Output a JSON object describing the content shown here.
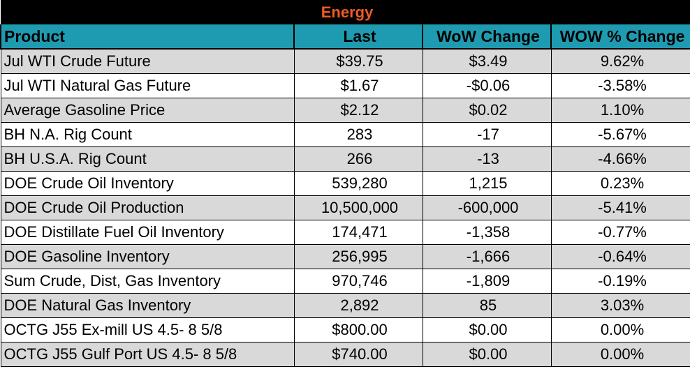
{
  "title": "Energy",
  "colors": {
    "title_bg": "#000000",
    "title_text": "#f05a24",
    "header_bg": "#1f9bb1",
    "alt_row": "#d9d9d9"
  },
  "columns": [
    "Product",
    "Last",
    "WoW Change",
    "WOW % Change"
  ],
  "rows": [
    {
      "product": "Jul WTI Crude Future",
      "last": "$39.75",
      "wow": "$3.49",
      "pct": "9.62%"
    },
    {
      "product": "Jul WTI Natural Gas Future",
      "last": "$1.67",
      "wow": "-$0.06",
      "pct": "-3.58%"
    },
    {
      "product": "Average Gasoline Price",
      "last": "$2.12",
      "wow": "$0.02",
      "pct": "1.10%"
    },
    {
      "product": "BH N.A. Rig Count",
      "last": "283",
      "wow": "-17",
      "pct": "-5.67%"
    },
    {
      "product": "BH U.S.A. Rig Count",
      "last": "266",
      "wow": "-13",
      "pct": "-4.66%"
    },
    {
      "product": "DOE Crude Oil Inventory",
      "last": "539,280",
      "wow": "1,215",
      "pct": "0.23%"
    },
    {
      "product": "DOE Crude Oil Production",
      "last": "10,500,000",
      "wow": "-600,000",
      "pct": "-5.41%"
    },
    {
      "product": "DOE Distillate Fuel Oil Inventory",
      "last": "174,471",
      "wow": "-1,358",
      "pct": "-0.77%"
    },
    {
      "product": "DOE Gasoline Inventory",
      "last": "256,995",
      "wow": "-1,666",
      "pct": "-0.64%"
    },
    {
      "product": "Sum Crude, Dist, Gas Inventory",
      "last": "970,746",
      "wow": "-1,809",
      "pct": "-0.19%"
    },
    {
      "product": "DOE Natural Gas Inventory",
      "last": "2,892",
      "wow": "85",
      "pct": "3.03%"
    },
    {
      "product": "OCTG J55 Ex-mill US 4.5- 8 5/8",
      "last": "$800.00",
      "wow": "$0.00",
      "pct": "0.00%"
    },
    {
      "product": "OCTG J55 Gulf Port US 4.5- 8 5/8",
      "last": "$740.00",
      "wow": "$0.00",
      "pct": "0.00%"
    }
  ]
}
